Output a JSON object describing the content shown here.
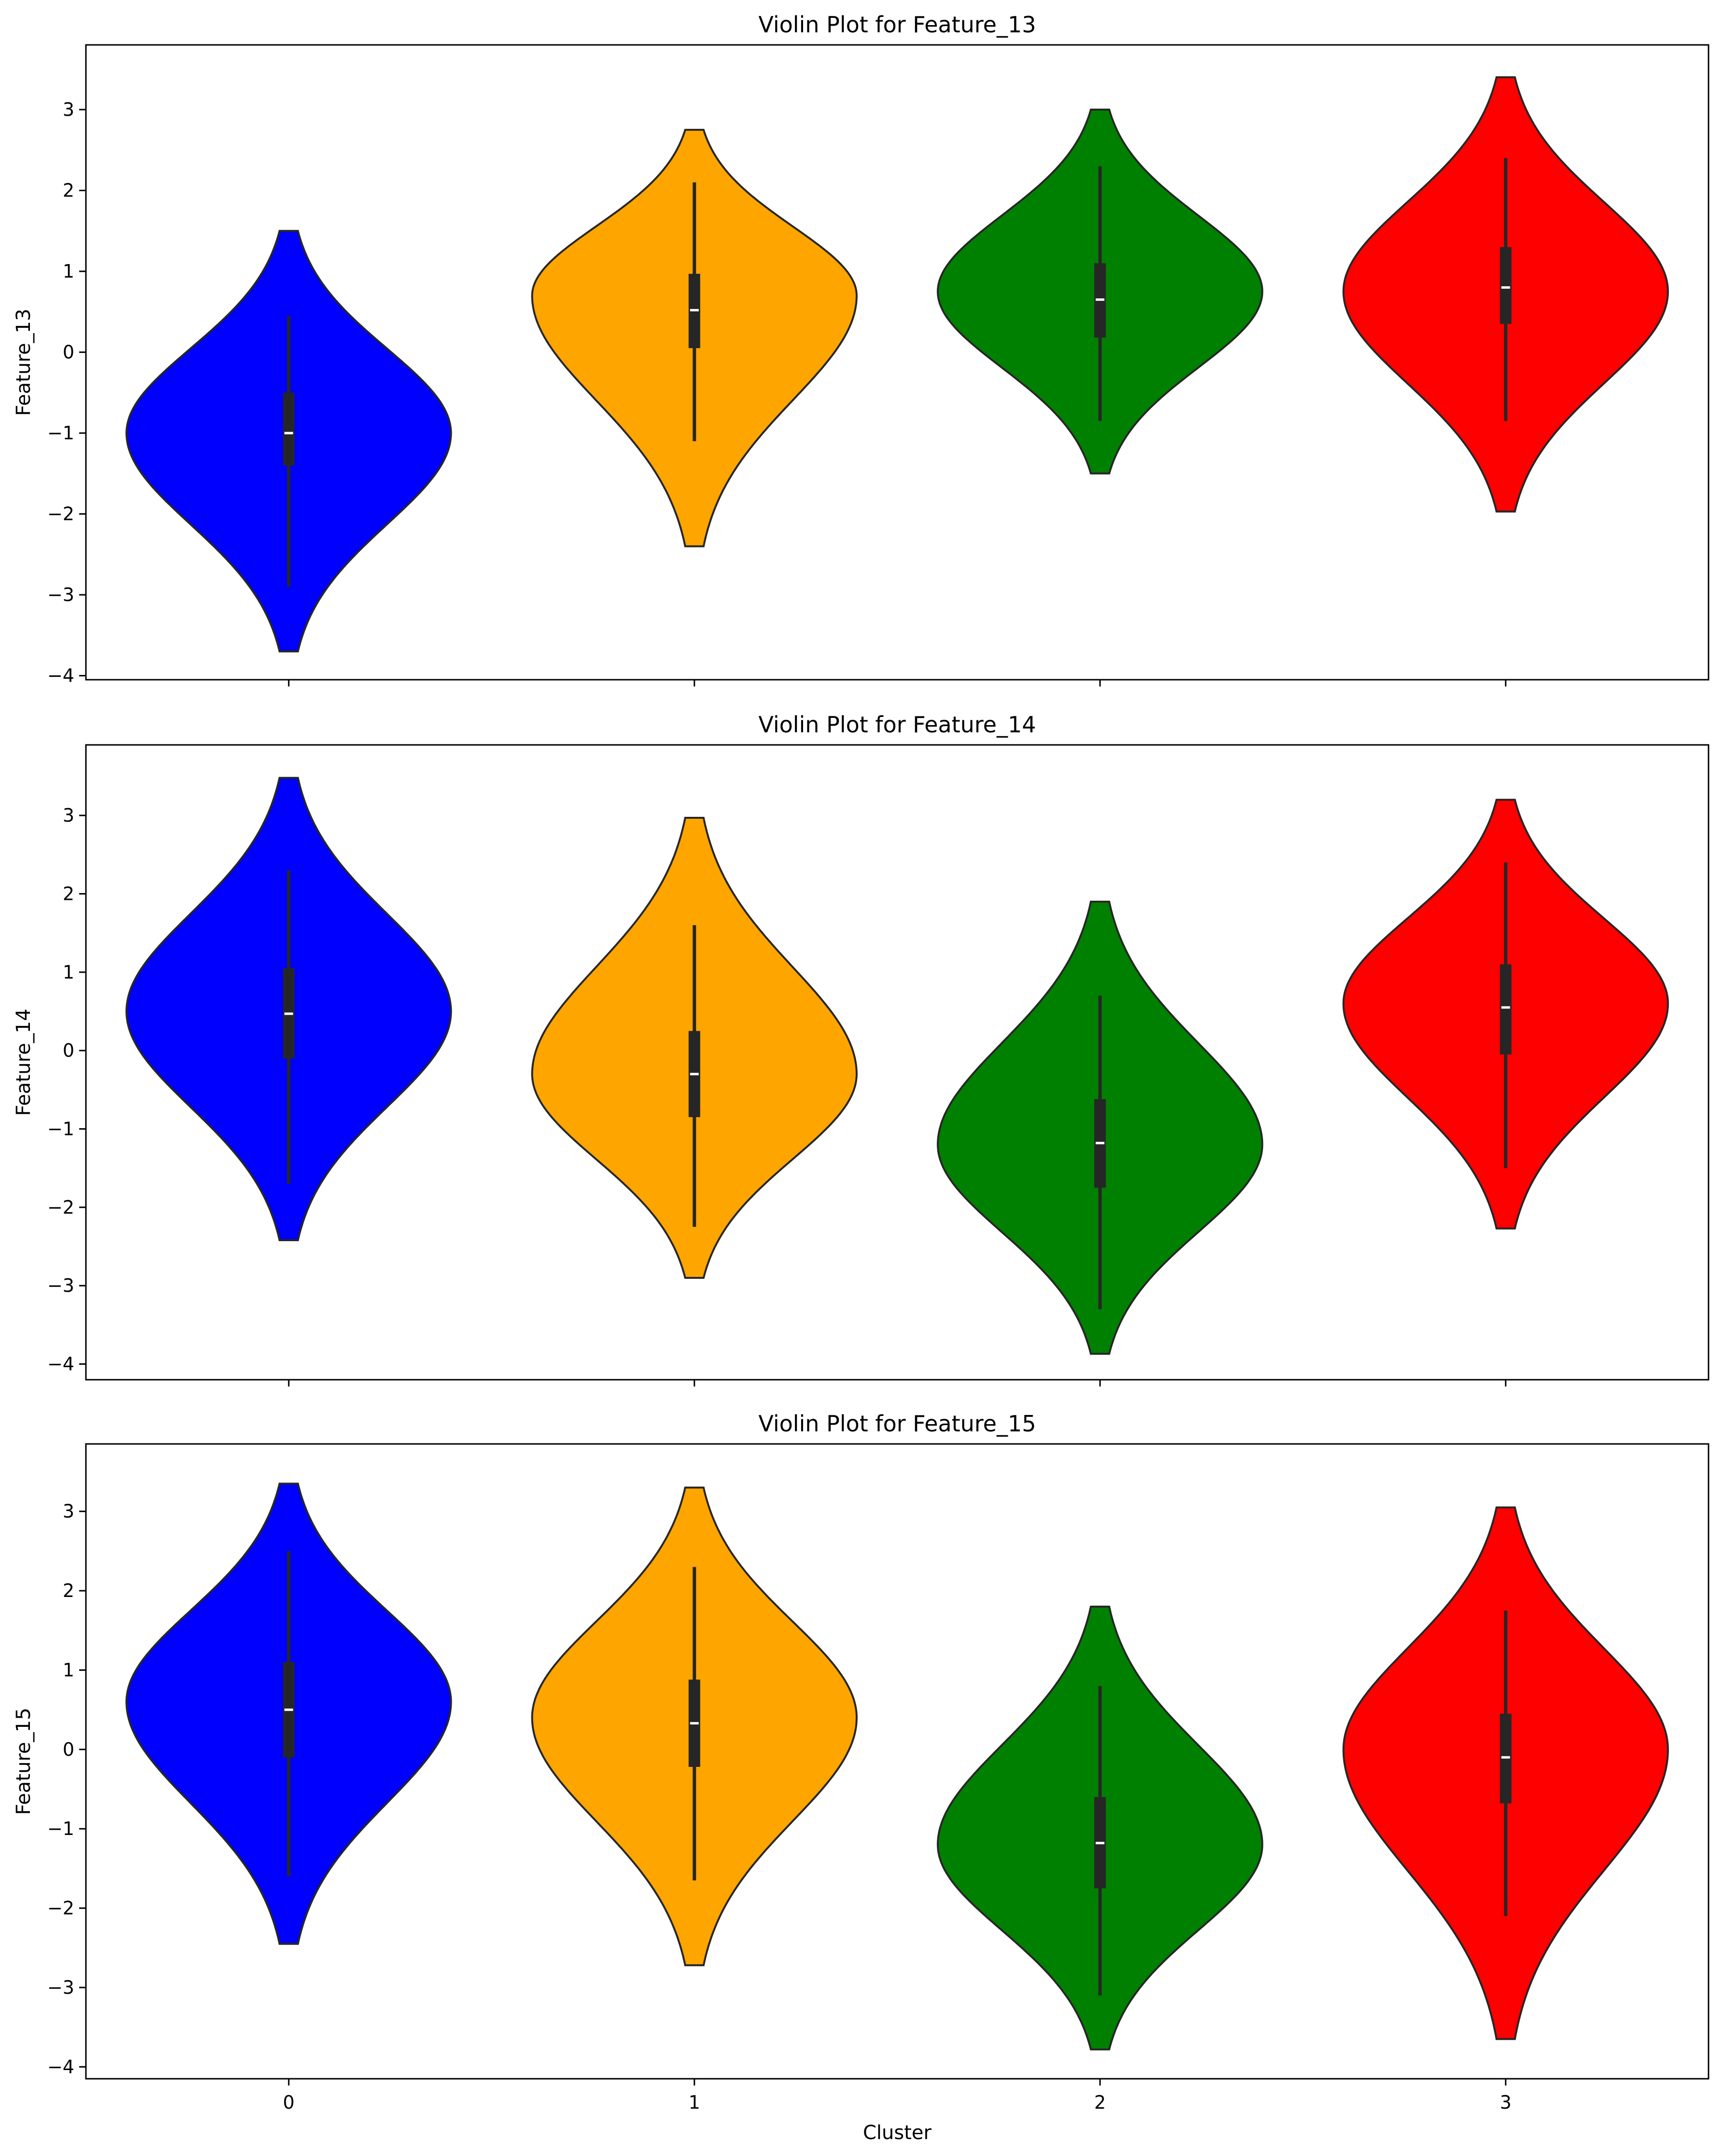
{
  "chart_data": [
    {
      "type": "violin",
      "title": "Violin Plot for Feature_13",
      "xlabel": "",
      "ylabel": "Feature_13",
      "categories": [
        "0",
        "1",
        "2",
        "3"
      ],
      "xticklabels": [
        "",
        "",
        "",
        ""
      ],
      "ylim": [
        -4.05,
        3.8
      ],
      "yticks": [
        -4,
        -3,
        -2,
        -1,
        0,
        1,
        2,
        3
      ],
      "yticklabels": [
        "−4",
        "−3",
        "−2",
        "−1",
        "0",
        "1",
        "2",
        "3"
      ],
      "colors": [
        "#0000ff",
        "#ffa500",
        "#008000",
        "#ff0000"
      ],
      "violins": [
        {
          "cluster": "0",
          "min": -3.7,
          "max": 1.5,
          "q1": -1.4,
          "median": -1.0,
          "q3": -0.5,
          "whisker_low": -2.9,
          "whisker_high": 0.45,
          "mode": -1.0,
          "width": 0.8
        },
        {
          "cluster": "1",
          "min": -2.4,
          "max": 2.75,
          "q1": 0.05,
          "median": 0.52,
          "q3": 0.97,
          "whisker_low": -1.1,
          "whisker_high": 2.1,
          "mode": 0.7,
          "width": 0.8
        },
        {
          "cluster": "2",
          "min": -1.5,
          "max": 3.0,
          "q1": 0.18,
          "median": 0.65,
          "q3": 1.1,
          "whisker_low": -0.85,
          "whisker_high": 2.3,
          "mode": 0.75,
          "width": 0.8
        },
        {
          "cluster": "3",
          "min": -1.97,
          "max": 3.4,
          "q1": 0.35,
          "median": 0.8,
          "q3": 1.3,
          "whisker_low": -0.85,
          "whisker_high": 2.4,
          "mode": 0.75,
          "width": 0.8
        }
      ]
    },
    {
      "type": "violin",
      "title": "Violin Plot for Feature_14",
      "xlabel": "",
      "ylabel": "Feature_14",
      "categories": [
        "0",
        "1",
        "2",
        "3"
      ],
      "xticklabels": [
        "",
        "",
        "",
        ""
      ],
      "ylim": [
        -4.2,
        3.9
      ],
      "yticks": [
        -4,
        -3,
        -2,
        -1,
        0,
        1,
        2,
        3
      ],
      "yticklabels": [
        "−4",
        "−3",
        "−2",
        "−1",
        "0",
        "1",
        "2",
        "3"
      ],
      "colors": [
        "#0000ff",
        "#ffa500",
        "#008000",
        "#ff0000"
      ],
      "violins": [
        {
          "cluster": "0",
          "min": -2.42,
          "max": 3.48,
          "q1": -0.1,
          "median": 0.47,
          "q3": 1.05,
          "whisker_low": -1.7,
          "whisker_high": 2.3,
          "mode": 0.5,
          "width": 0.8
        },
        {
          "cluster": "1",
          "min": -2.9,
          "max": 2.97,
          "q1": -0.85,
          "median": -0.3,
          "q3": 0.25,
          "whisker_low": -2.25,
          "whisker_high": 1.6,
          "mode": -0.3,
          "width": 0.8
        },
        {
          "cluster": "2",
          "min": -3.87,
          "max": 1.9,
          "q1": -1.75,
          "median": -1.18,
          "q3": -0.62,
          "whisker_low": -3.3,
          "whisker_high": 0.7,
          "mode": -1.2,
          "width": 0.8
        },
        {
          "cluster": "3",
          "min": -2.27,
          "max": 3.2,
          "q1": -0.05,
          "median": 0.55,
          "q3": 1.1,
          "whisker_low": -1.5,
          "whisker_high": 2.4,
          "mode": 0.6,
          "width": 0.8
        }
      ]
    },
    {
      "type": "violin",
      "title": "Violin Plot for Feature_15",
      "xlabel": "Cluster",
      "ylabel": "Feature_15",
      "categories": [
        "0",
        "1",
        "2",
        "3"
      ],
      "xticklabels": [
        "0",
        "1",
        "2",
        "3"
      ],
      "ylim": [
        -4.15,
        3.85
      ],
      "yticks": [
        -4,
        -3,
        -2,
        -1,
        0,
        1,
        2,
        3
      ],
      "yticklabels": [
        "−4",
        "−3",
        "−2",
        "−1",
        "0",
        "1",
        "2",
        "3"
      ],
      "colors": [
        "#0000ff",
        "#ffa500",
        "#008000",
        "#ff0000"
      ],
      "violins": [
        {
          "cluster": "0",
          "min": -2.45,
          "max": 3.35,
          "q1": -0.1,
          "median": 0.5,
          "q3": 1.1,
          "whisker_low": -1.6,
          "whisker_high": 2.5,
          "mode": 0.6,
          "width": 0.8
        },
        {
          "cluster": "1",
          "min": -2.72,
          "max": 3.3,
          "q1": -0.22,
          "median": 0.33,
          "q3": 0.88,
          "whisker_low": -1.65,
          "whisker_high": 2.3,
          "mode": 0.4,
          "width": 0.8
        },
        {
          "cluster": "2",
          "min": -3.78,
          "max": 1.8,
          "q1": -1.75,
          "median": -1.18,
          "q3": -0.6,
          "whisker_low": -3.1,
          "whisker_high": 0.8,
          "mode": -1.2,
          "width": 0.8
        },
        {
          "cluster": "3",
          "min": -3.65,
          "max": 3.05,
          "q1": -0.68,
          "median": -0.1,
          "q3": 0.45,
          "whisker_low": -2.1,
          "whisker_high": 1.75,
          "mode": 0.0,
          "width": 0.8
        }
      ]
    }
  ]
}
